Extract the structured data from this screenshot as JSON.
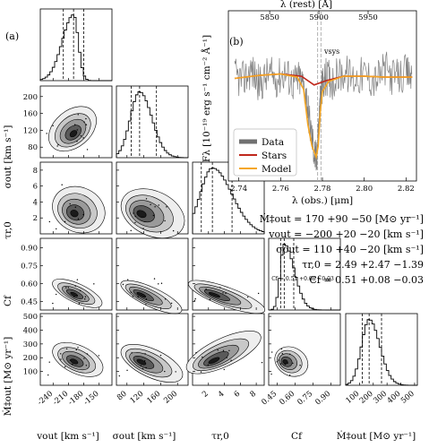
{
  "panel_a_label": "(a)",
  "panel_b_label": "(b)",
  "results": [
    "Ṁ‡out = 170 +90 −50 [M⊙ yr⁻¹]",
    "vout = −200 +20 −20 [km s⁻¹]",
    "σout = 110 +40 −20 [km s⁻¹]",
    "τr,0 = 2.49 +2.47 −1.39",
    "Cf = 0.51 +0.08 −0.03"
  ],
  "cf_title": "Cf = 0.51 +0.08 −0.03",
  "axis_labels": {
    "vout": "vout [km s⁻¹]",
    "sigma": "σout [km s⁻¹]",
    "tau": "τr,0",
    "cf": "Cf",
    "mdot": "Ṁ‡out [M⊙ yr⁻¹]"
  },
  "spectrum": {
    "top_axis_label": "λ (rest) [Å]",
    "bottom_axis_label": "λ (obs.) [μm]",
    "y_label": "Fλ [10⁻¹⁹ erg s⁻¹ cm⁻² Å⁻¹]",
    "sys_label": "vsys",
    "legend": [
      "Data",
      "Stars",
      "Model"
    ]
  },
  "chart_data": [
    {
      "type": "corner",
      "params": [
        "vout",
        "sigma_out",
        "tau_r0",
        "Cf",
        "Mdot_out"
      ],
      "medians": [
        -200,
        110,
        2.49,
        0.51,
        170
      ],
      "lower_err": [
        20,
        20,
        1.39,
        0.03,
        50
      ],
      "upper_err": [
        20,
        40,
        2.47,
        0.08,
        90
      ],
      "ranges": [
        [
          -265,
          -125
        ],
        [
          55,
          225
        ],
        [
          0,
          9
        ],
        [
          0.38,
          0.98
        ],
        [
          0,
          520
        ]
      ],
      "ticks": [
        [
          "-240",
          "-210",
          "-180",
          "-150"
        ],
        [
          "40",
          "80",
          "120",
          "160",
          "200"
        ],
        [
          "2",
          "4",
          "6",
          "8"
        ],
        [
          "0.45",
          "0.60",
          "0.75",
          "0.90"
        ],
        [
          "100",
          "200",
          "300",
          "400",
          "500"
        ]
      ],
      "tick_values": [
        [
          -240,
          -210,
          -180,
          -150
        ],
        [
          40,
          80,
          120,
          160,
          200
        ],
        [
          2,
          4,
          6,
          8
        ],
        [
          0.45,
          0.6,
          0.75,
          0.9
        ],
        [
          100,
          200,
          300,
          400,
          500
        ]
      ],
      "colors": {
        "contour_fill": [
          "#eeeeee",
          "#c8c8c8",
          "#9a9a9a",
          "#5a5a5a",
          "#1a1a1a"
        ],
        "lines": "#000000"
      }
    },
    {
      "type": "line",
      "xlabel": "λ (obs.) [μm]",
      "ylabel": "Fλ [10⁻¹⁹ erg s⁻¹ cm⁻² Å⁻¹]",
      "xlim": [
        2.735,
        2.825
      ],
      "ylim": [
        -1.0,
        2.9
      ],
      "x_ticks": [
        2.74,
        2.76,
        2.78,
        2.8,
        2.82
      ],
      "top_ticks_rest": [
        5850,
        5900,
        5950
      ],
      "rest_to_obs_factor": 0.0004709,
      "sys_obs_wavelength": 2.7785,
      "legend_position": "lower-left",
      "series": [
        {
          "name": "Data",
          "color": "#707070",
          "x": [
            2.738,
            2.742,
            2.746,
            2.75,
            2.754,
            2.758,
            2.762,
            2.766,
            2.769,
            2.772,
            2.774,
            2.776,
            2.777,
            2.778,
            2.779,
            2.78,
            2.782,
            2.785,
            2.79,
            2.795,
            2.8,
            2.805,
            2.81,
            2.815,
            2.82,
            2.823
          ],
          "y": [
            1.4,
            1.3,
            1.55,
            1.2,
            1.45,
            1.35,
            1.5,
            1.25,
            1.35,
            1.1,
            0.3,
            -0.3,
            -0.55,
            0.1,
            0.8,
            1.2,
            1.4,
            1.3,
            1.5,
            1.35,
            1.45,
            1.3,
            1.55,
            1.35,
            1.45,
            1.4
          ]
        },
        {
          "name": "Stars",
          "color": "#c0281c",
          "x": [
            2.738,
            2.75,
            2.76,
            2.77,
            2.776,
            2.782,
            2.79,
            2.8,
            2.81,
            2.823
          ],
          "y": [
            1.35,
            1.42,
            1.45,
            1.4,
            1.2,
            1.3,
            1.4,
            1.4,
            1.38,
            1.38
          ]
        },
        {
          "name": "Model",
          "color": "#f5a623",
          "x": [
            2.738,
            2.75,
            2.76,
            2.768,
            2.771,
            2.773,
            2.775,
            2.777,
            2.778,
            2.779,
            2.78,
            2.783,
            2.79,
            2.8,
            2.81,
            2.823
          ],
          "y": [
            1.35,
            1.42,
            1.45,
            1.38,
            1.1,
            0.3,
            -0.2,
            -0.45,
            -0.2,
            0.6,
            1.05,
            1.28,
            1.4,
            1.4,
            1.38,
            1.38
          ]
        }
      ]
    }
  ]
}
